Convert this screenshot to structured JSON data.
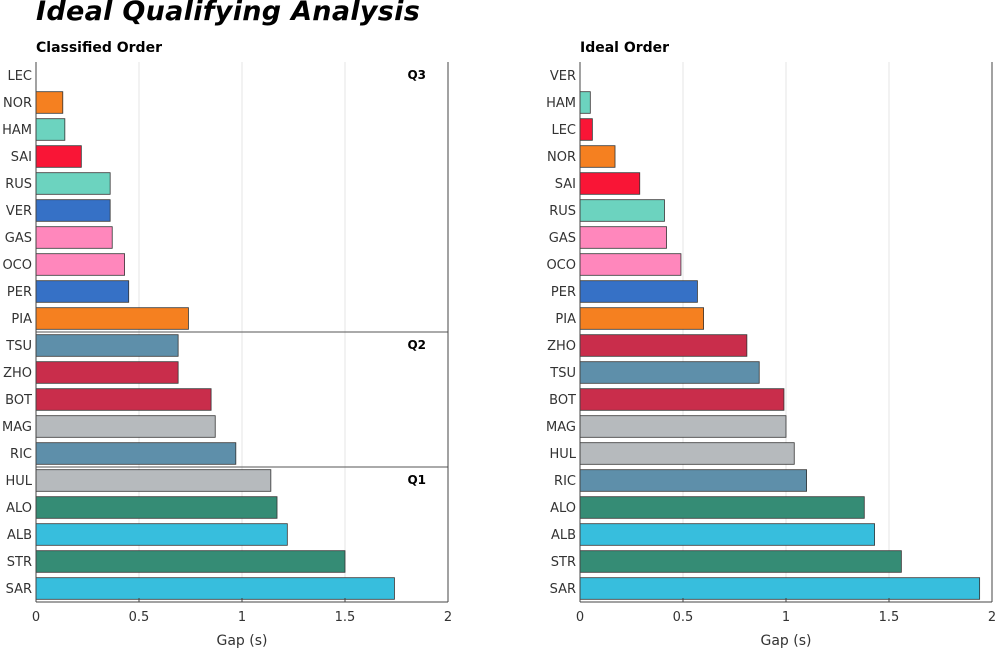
{
  "title": "Ideal Qualifying Analysis",
  "colors": {
    "LEC": "#f91536",
    "NOR": "#f58020",
    "HAM": "#6cd3bf",
    "SAI": "#f91536",
    "RUS": "#6cd3bf",
    "VER": "#3671c6",
    "GAS": "#ff87bc",
    "OCO": "#ff87bc",
    "PER": "#3671c6",
    "PIA": "#f58020",
    "TSU": "#5e8faa",
    "ZHO": "#c92d4b",
    "BOT": "#c92d4b",
    "MAG": "#b6babd",
    "RIC": "#5e8faa",
    "HUL": "#b6babd",
    "ALO": "#358c75",
    "ALB": "#37bedd",
    "STR": "#358c75",
    "SAR": "#37bedd"
  },
  "chart_data": [
    {
      "type": "bar",
      "orientation": "horizontal",
      "title": "Classified Order",
      "categories": [
        "LEC",
        "NOR",
        "HAM",
        "SAI",
        "RUS",
        "VER",
        "GAS",
        "OCO",
        "PER",
        "PIA",
        "TSU",
        "ZHO",
        "BOT",
        "MAG",
        "RIC",
        "HUL",
        "ALO",
        "ALB",
        "STR",
        "SAR"
      ],
      "values": [
        0.0,
        0.13,
        0.14,
        0.22,
        0.36,
        0.36,
        0.37,
        0.43,
        0.45,
        0.74,
        0.69,
        0.69,
        0.85,
        0.87,
        0.97,
        1.14,
        1.17,
        1.22,
        1.5,
        1.74
      ],
      "xlabel": "Gap (s)",
      "xlim": [
        0,
        2
      ],
      "xticks": [
        "0",
        "0.5",
        "1",
        "1.5",
        "2"
      ],
      "grid": true,
      "session_separators": [
        {
          "label": "Q3",
          "start_index": 0
        },
        {
          "label": "Q2",
          "start_index": 10
        },
        {
          "label": "Q1",
          "start_index": 15
        }
      ]
    },
    {
      "type": "bar",
      "orientation": "horizontal",
      "title": "Ideal Order",
      "categories": [
        "VER",
        "HAM",
        "LEC",
        "NOR",
        "SAI",
        "RUS",
        "GAS",
        "OCO",
        "PER",
        "PIA",
        "ZHO",
        "TSU",
        "BOT",
        "MAG",
        "HUL",
        "RIC",
        "ALO",
        "ALB",
        "STR",
        "SAR"
      ],
      "values": [
        0.0,
        0.05,
        0.06,
        0.17,
        0.29,
        0.41,
        0.42,
        0.49,
        0.57,
        0.6,
        0.81,
        0.87,
        0.99,
        1.0,
        1.04,
        1.1,
        1.38,
        1.43,
        1.56,
        1.94
      ],
      "xlabel": "Gap (s)",
      "xlim": [
        0,
        2
      ],
      "xticks": [
        "0",
        "0.5",
        "1",
        "1.5",
        "2"
      ],
      "grid": true
    }
  ]
}
